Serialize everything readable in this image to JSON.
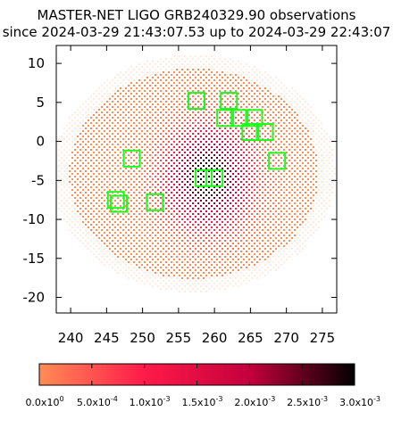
{
  "chart_data": {
    "type": "heatmap",
    "title": "MASTER-NET LIGO GRB240329.90 observations",
    "subtitle": "since 2024-03-29 21:43:07.53 up to 2024-03-29 22:43:07",
    "x_ticks": [
      "240",
      "245",
      "250",
      "255",
      "260",
      "265",
      "270",
      "275"
    ],
    "y_ticks": [
      "10",
      "5",
      "0",
      "-5",
      "-10",
      "-15",
      "-20"
    ],
    "xlim": [
      238,
      277
    ],
    "ylim": [
      -22,
      12.3
    ],
    "probability_center": [
      259,
      -4.5
    ],
    "region_center": [
      257,
      -4
    ],
    "colorbar": {
      "range": [
        0,
        0.003
      ],
      "tick_labels": [
        {
          "mantissa": "0.0x10",
          "exp": "0"
        },
        {
          "mantissa": "5.0x10",
          "exp": "-4"
        },
        {
          "mantissa": "1.0x10",
          "exp": "-3"
        },
        {
          "mantissa": "1.5x10",
          "exp": "-3"
        },
        {
          "mantissa": "2.0x10",
          "exp": "-3"
        },
        {
          "mantissa": "2.5x10",
          "exp": "-3"
        },
        {
          "mantissa": "3.0x10",
          "exp": "-3"
        }
      ],
      "colors": [
        "#ff8c55",
        "#ff1a4a",
        "#c4003c",
        "#000000"
      ]
    },
    "observation_fields": [
      {
        "x": 257.5,
        "y": 5.2
      },
      {
        "x": 262.0,
        "y": 5.2
      },
      {
        "x": 261.5,
        "y": 3.0
      },
      {
        "x": 263.5,
        "y": 3.0
      },
      {
        "x": 265.5,
        "y": 3.0
      },
      {
        "x": 265.0,
        "y": 1.2
      },
      {
        "x": 267.0,
        "y": 1.2
      },
      {
        "x": 268.7,
        "y": -2.5
      },
      {
        "x": 248.5,
        "y": -2.2
      },
      {
        "x": 258.5,
        "y": -4.7
      },
      {
        "x": 260.0,
        "y": -4.7
      },
      {
        "x": 246.3,
        "y": -7.5
      },
      {
        "x": 246.7,
        "y": -8.0
      },
      {
        "x": 251.7,
        "y": -7.8
      }
    ],
    "field_color": "#19ff19"
  }
}
